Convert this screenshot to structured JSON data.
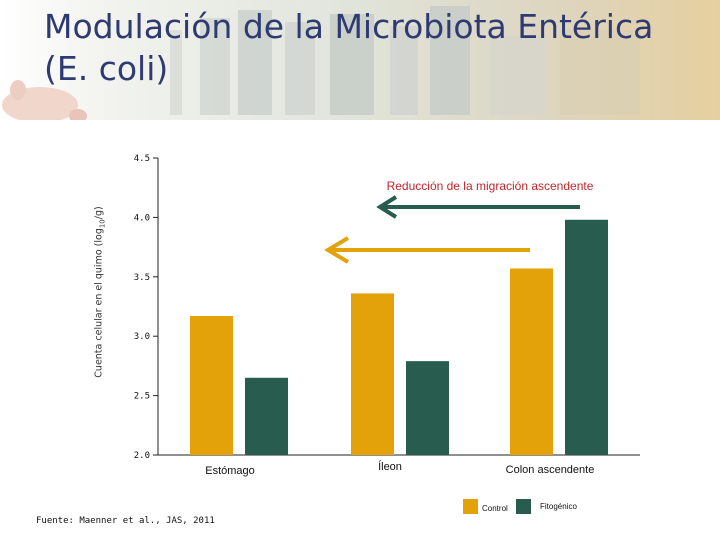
{
  "slide": {
    "title_line1": "Modulación de la Microbiota Entérica",
    "title_line2": "(E. coli)",
    "source": "Fuente: Maenner et al., JAS, 2011"
  },
  "chart_data": {
    "type": "bar",
    "title": "",
    "ylabel": "Cuenta celular en el quimo (log10/g)",
    "ylabel_main": "Cuenta celular en el quimo (log",
    "ylabel_sub": "10",
    "ylabel_end": "/g)",
    "ylim": [
      2.0,
      4.5
    ],
    "yticks": [
      "2.0",
      "2.5",
      "3.0",
      "3.5",
      "4.0",
      "4.5"
    ],
    "ytick_values": [
      2.0,
      2.5,
      3.0,
      3.5,
      4.0,
      4.5
    ],
    "categories": [
      "Estómago",
      "Íleon",
      "Colon ascendente"
    ],
    "series": [
      {
        "name": "Control",
        "color": "#e3a10a",
        "values": [
          3.17,
          3.36,
          3.57
        ]
      },
      {
        "name": "Fitogénico",
        "color": "#275c4f",
        "values": [
          2.65,
          2.79,
          3.98
        ]
      }
    ],
    "annotation": "Reducción de la migración ascendente",
    "annotation_color": "#c0262b",
    "arrow_colors": [
      "#275c4f",
      "#e3a10a"
    ],
    "legend_position": "bottom-right"
  }
}
